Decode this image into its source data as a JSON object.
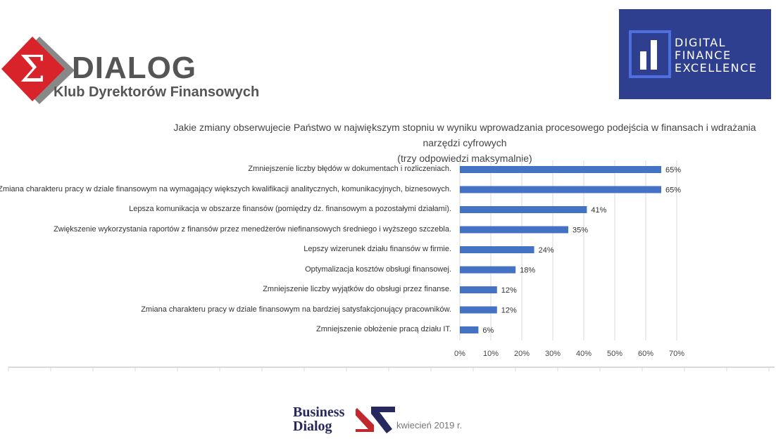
{
  "logos": {
    "dialog": {
      "name": "DIALOG",
      "subtitle": "Klub Dyrektorów Finansowych"
    },
    "dfe": {
      "lines": [
        "DIGITAL",
        "FINANCE",
        "EXCELLENCE"
      ]
    },
    "business_dialog": {
      "lines": [
        "Business",
        "Dialog"
      ]
    }
  },
  "footer": {
    "date": "kwiecień 2019 r."
  },
  "chart_data": {
    "type": "bar",
    "orientation": "horizontal",
    "title": "Jakie zmiany obserwujecie Państwo w największym stopniu w wyniku wprowadzania procesowego podejścia w finansach i wdrażania narzędzi cyfrowych",
    "subtitle": "(trzy odpowiedzi maksymalnie)",
    "categories": [
      "Zmniejszenie liczby błędów w dokumentach i rozliczeniach.",
      "Zmiana charakteru pracy w dziale finansowym na wymagający większych kwalifikacji analitycznych, komunikacyjnych, biznesowych.",
      "Lepsza komunikacja w obszarze finansów (pomiędzy dz. finansowym a pozostałymi działami).",
      "Zwiększenie wykorzystania raportów z finansów przez menedżerów niefinansowych średniego i wyższego szczebla.",
      "Lepszy wizerunek działu finansów w firmie.",
      "Optymalizacja kosztów obsługi finansowej.",
      "Zmniejszenie liczby wyjątków do obsługi przez finanse.",
      "Zmiana charakteru pracy w dziale finansowym na bardziej satysfakcjonujący pracowników.",
      "Zmniejszenie obłożenie pracą działu IT."
    ],
    "values": [
      65,
      65,
      41,
      35,
      24,
      18,
      12,
      12,
      6
    ],
    "data_labels": [
      "65%",
      "65%",
      "41%",
      "35%",
      "24%",
      "18%",
      "12%",
      "12%",
      "6%"
    ],
    "xlim": [
      0,
      70
    ],
    "x_ticks": [
      "0%",
      "10%",
      "20%",
      "30%",
      "40%",
      "50%",
      "60%",
      "70%"
    ],
    "grid": true,
    "bar_color": "#4472c4"
  }
}
